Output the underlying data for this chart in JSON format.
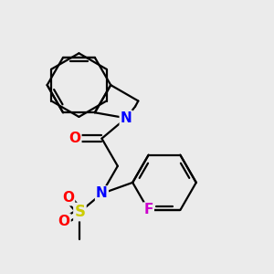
{
  "background_color": "#ebebeb",
  "atom_colors": {
    "C": "#000000",
    "N": "#0000ff",
    "O": "#ff0000",
    "S": "#cccc00",
    "F": "#cc00cc",
    "H": "#000000"
  },
  "bond_color": "#000000",
  "bond_width": 1.6,
  "font_size": 10,
  "figsize": [
    3.0,
    3.0
  ],
  "dpi": 100
}
